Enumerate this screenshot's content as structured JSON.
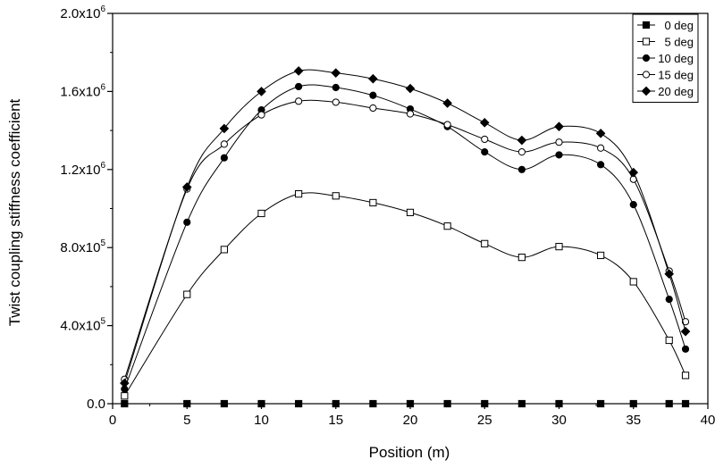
{
  "chart_data": {
    "type": "line",
    "xlabel": "Position (m)",
    "ylabel": "Twist coupling stiffness coefficient",
    "xlim": [
      0,
      40
    ],
    "ylim": [
      0,
      2000000
    ],
    "x_ticks": [
      0,
      5,
      10,
      15,
      20,
      25,
      30,
      35,
      40
    ],
    "x_tick_labels": [
      "0",
      "5",
      "10",
      "15",
      "20",
      "25",
      "30",
      "35",
      "40"
    ],
    "y_ticks": [
      0,
      400000,
      800000,
      1200000,
      1600000,
      2000000
    ],
    "y_tick_labels": [
      {
        "mantissa": "0.0",
        "exp": ""
      },
      {
        "mantissa": "4.0x10",
        "exp": "5"
      },
      {
        "mantissa": "8.0x10",
        "exp": "5"
      },
      {
        "mantissa": "1.2x10",
        "exp": "6"
      },
      {
        "mantissa": "1.6x10",
        "exp": "6"
      },
      {
        "mantissa": "2.0x10",
        "exp": "6"
      }
    ],
    "grid": false,
    "legend_position": "top-right",
    "x": [
      0.8,
      5.0,
      7.5,
      10.0,
      12.5,
      15.0,
      17.5,
      20.0,
      22.5,
      25.0,
      27.5,
      30.0,
      32.8,
      35.0,
      37.4,
      38.5
    ],
    "series": [
      {
        "name": "0 deg",
        "marker": "square-filled",
        "values": [
          0,
          0,
          0,
          0,
          0,
          0,
          0,
          0,
          0,
          0,
          0,
          0,
          0,
          0,
          0,
          0
        ]
      },
      {
        "name": "5 deg",
        "marker": "square-open",
        "values": [
          40000,
          560000,
          790000,
          975000,
          1075000,
          1065000,
          1030000,
          980000,
          910000,
          820000,
          750000,
          805000,
          760000,
          625000,
          325000,
          145000
        ]
      },
      {
        "name": "10 deg",
        "marker": "circle-filled",
        "values": [
          75000,
          930000,
          1260000,
          1505000,
          1625000,
          1620000,
          1580000,
          1510000,
          1420000,
          1290000,
          1200000,
          1275000,
          1225000,
          1020000,
          535000,
          280000
        ]
      },
      {
        "name": "15 deg",
        "marker": "circle-open",
        "values": [
          125000,
          1100000,
          1330000,
          1480000,
          1550000,
          1545000,
          1515000,
          1485000,
          1430000,
          1355000,
          1290000,
          1340000,
          1310000,
          1150000,
          680000,
          420000
        ]
      },
      {
        "name": "20 deg",
        "marker": "diamond-filled",
        "values": [
          105000,
          1110000,
          1410000,
          1600000,
          1705000,
          1695000,
          1665000,
          1615000,
          1540000,
          1440000,
          1350000,
          1420000,
          1385000,
          1185000,
          665000,
          370000
        ]
      }
    ]
  }
}
